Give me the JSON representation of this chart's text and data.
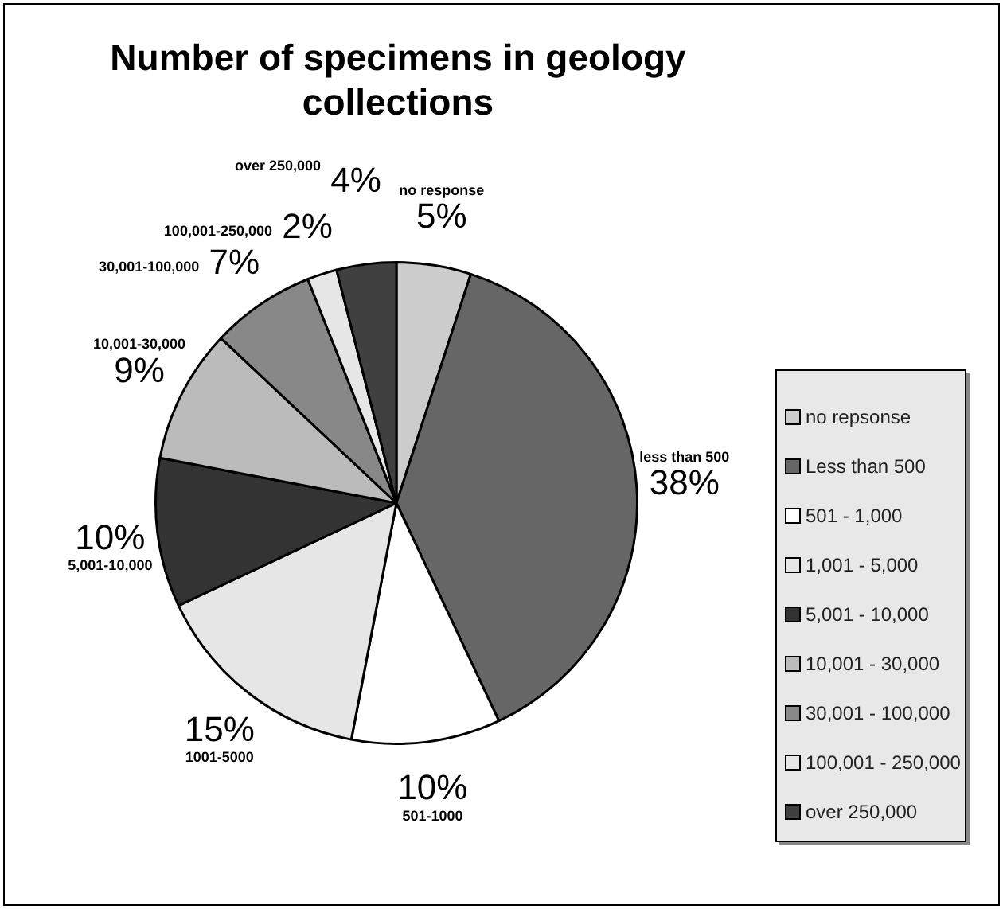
{
  "chart_data": {
    "type": "pie",
    "title": "Number of specimens in geology collections",
    "categories": [
      "no repsonse",
      "Less than 500",
      "501 - 1,000",
      "1,001 - 5,000",
      "5,001 - 10,000",
      "10,001 - 30,000",
      "30,001 - 100,000",
      "100,001 - 250,000",
      "over 250,000"
    ],
    "values": [
      5,
      38,
      10,
      15,
      10,
      9,
      7,
      2,
      4
    ],
    "colors": [
      "#cccccc",
      "#666666",
      "#ffffff",
      "#e6e6e6",
      "#333333",
      "#bbbbbb",
      "#888888",
      "#e6e6e6",
      "#404040"
    ],
    "value_labels": [
      "5%",
      "38%",
      "10%",
      "15%",
      "10%",
      "9%",
      "7%",
      "2%",
      "4%"
    ],
    "annotations": [
      "no response",
      "less than 500",
      "501-1000",
      "1001-5000",
      "5,001-10,000",
      "10,001-30,000",
      "30,001-100,000",
      "100,001-250,000",
      "over 250,000"
    ],
    "legend": "right"
  }
}
